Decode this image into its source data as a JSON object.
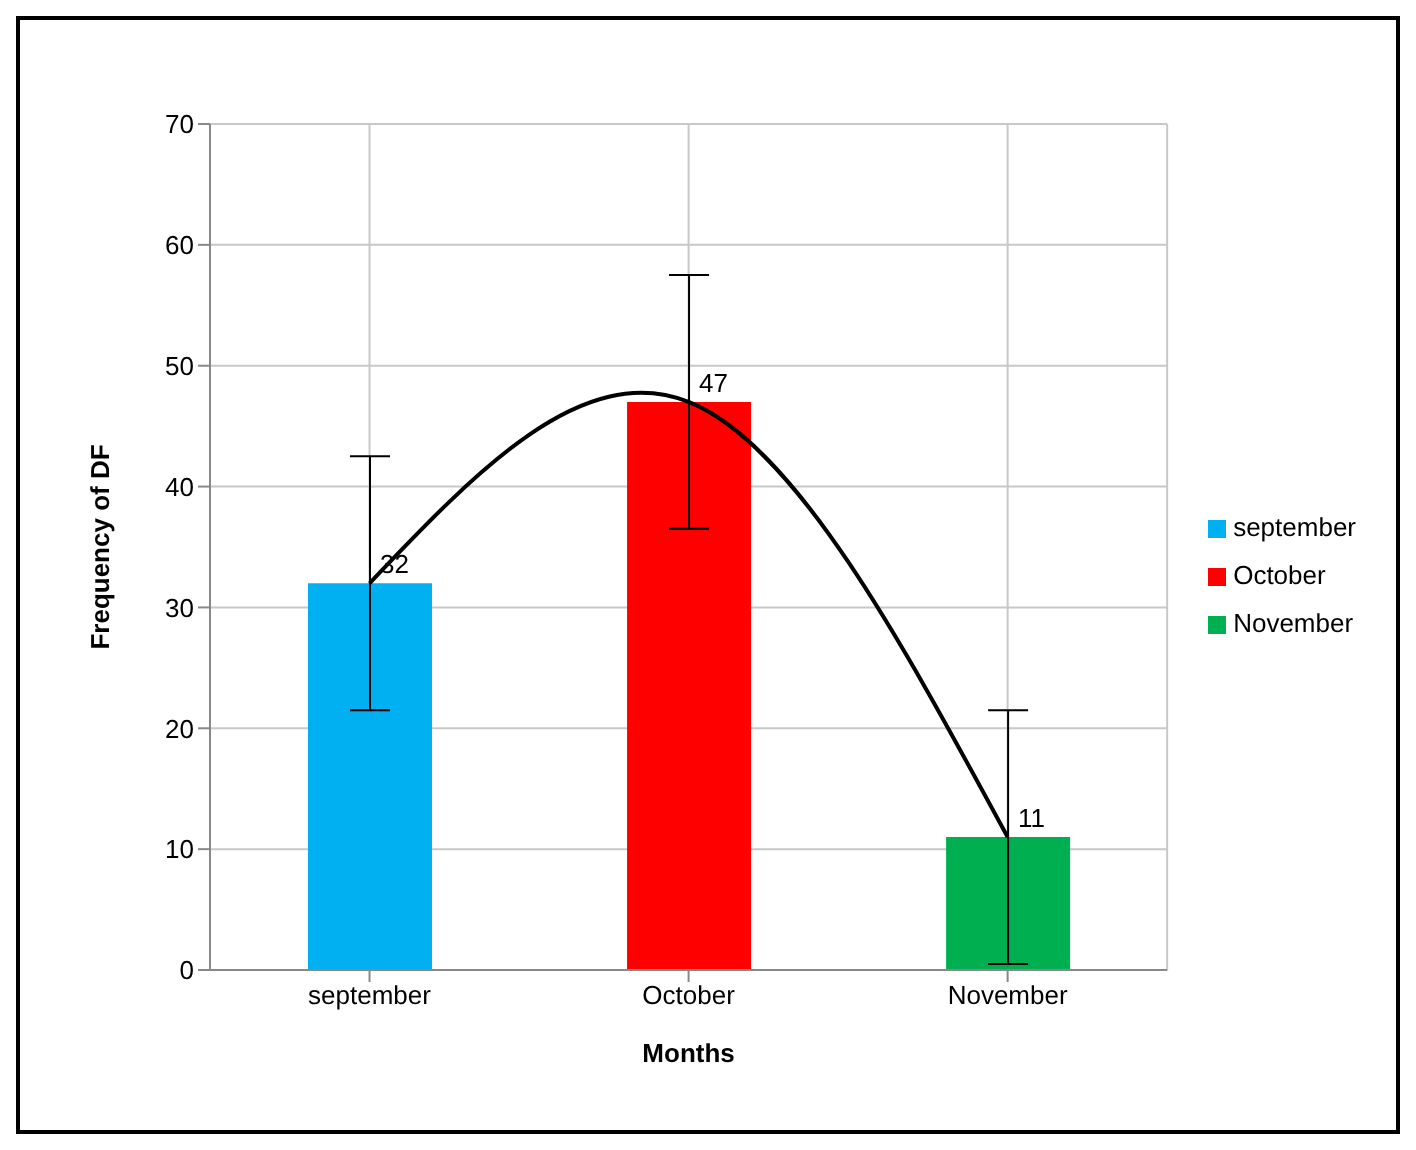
{
  "chart_data": {
    "type": "bar",
    "stacked": true,
    "xlabel": "Months",
    "ylabel": "Frequency of DF",
    "categories": [
      "september",
      "October",
      "November"
    ],
    "series": [
      {
        "name": "september",
        "color": "#00b0f0",
        "values": [
          32,
          null,
          null
        ],
        "errors": [
          10.5,
          null,
          null
        ],
        "value_labels": [
          "32",
          null,
          null
        ]
      },
      {
        "name": "October",
        "color": "#ff0000",
        "values": [
          null,
          47,
          null
        ],
        "errors": [
          null,
          10.5,
          null
        ],
        "value_labels": [
          null,
          "47",
          null
        ]
      },
      {
        "name": "November",
        "color": "#00b050",
        "values": [
          null,
          null,
          11
        ],
        "errors": [
          null,
          null,
          10.5
        ],
        "value_labels": [
          null,
          null,
          "11"
        ]
      },
      {
        "type": "line",
        "x": [
          "september",
          "October",
          "November"
        ],
        "values": [
          32,
          47,
          11
        ],
        "color": "#000000",
        "marker": "none"
      }
    ],
    "ylim": [
      0,
      70
    ],
    "yticks": [
      0,
      10,
      20,
      30,
      40,
      50,
      60,
      70
    ],
    "grid": true,
    "legend": "right"
  }
}
